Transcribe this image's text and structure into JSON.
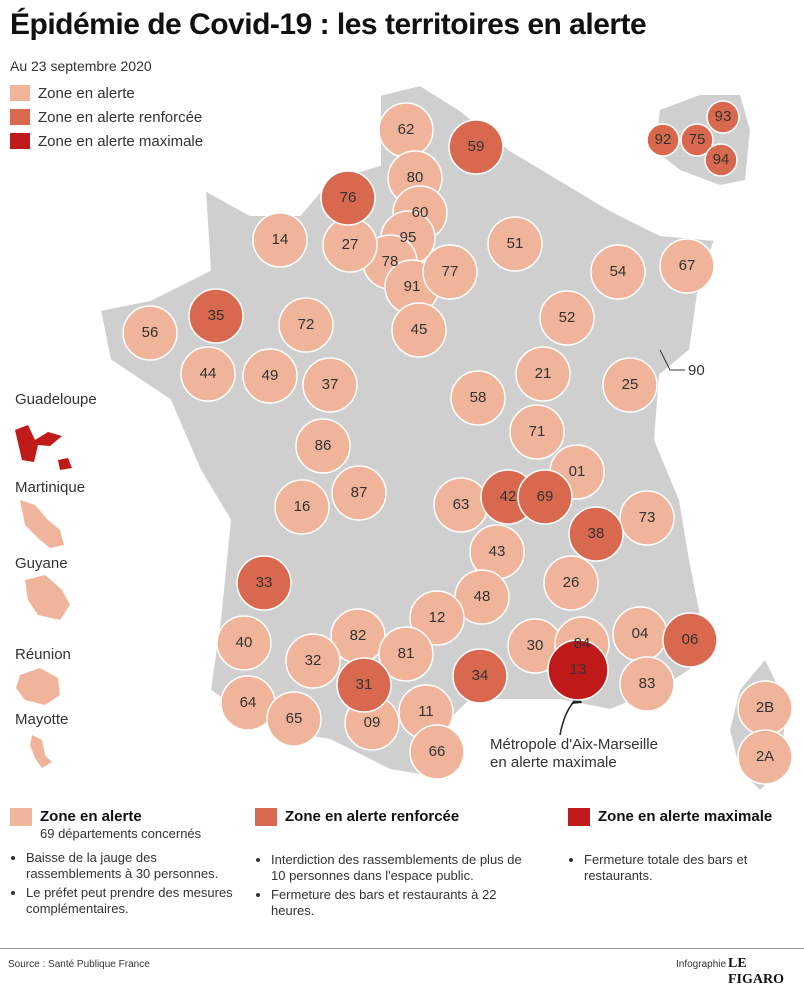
{
  "title": "Épidémie de Covid-19 : les territoires en alerte",
  "date": "Au 23 septembre 2020",
  "zones": [
    {
      "label": "Zone en alerte",
      "color": "#f0b49a",
      "note": "69 départements concernés",
      "departments": [
        "62",
        "80",
        "60",
        "95",
        "78",
        "91",
        "77",
        "14",
        "27",
        "51",
        "54",
        "67",
        "56",
        "72",
        "45",
        "52",
        "44",
        "49",
        "37",
        "58",
        "21",
        "25",
        "86",
        "71",
        "01",
        "16",
        "87",
        "63",
        "73",
        "43",
        "26",
        "48",
        "12",
        "30",
        "84",
        "04",
        "40",
        "82",
        "81",
        "32",
        "83",
        "64",
        "65",
        "09",
        "11",
        "66",
        "2B",
        "2A"
      ],
      "bullets": [
        "Baisse de la jauge des rassemblements à 30 personnes.",
        "Le préfet peut prendre des mesures complémentaires."
      ]
    },
    {
      "label": "Zone en alerte renforcée",
      "color": "#d9694e",
      "departments": [
        "59",
        "76",
        "35",
        "42",
        "69",
        "38",
        "33",
        "06",
        "34",
        "31",
        "92",
        "75",
        "93",
        "94"
      ],
      "bullets": [
        "Interdiction des rassemblements de plus de 10 personnes dans l'espace public.",
        "Fermeture des bars et restaurants à 22 heures."
      ]
    },
    {
      "label": "Zone en alerte maximale",
      "color": "#c0191a",
      "departments": [
        "13"
      ],
      "bullets": [
        "Fermeture totale des bars et restaurants."
      ]
    }
  ],
  "overseas": [
    {
      "name": "Guadeloupe",
      "color": "#c0191a"
    },
    {
      "name": "Martinique",
      "color": "#f0b49a"
    },
    {
      "name": "Guyane",
      "color": "#f0b49a"
    },
    {
      "name": "Réunion",
      "color": "#f0b49a"
    },
    {
      "name": "Mayotte",
      "color": "#f0b49a"
    }
  ],
  "annotations": {
    "territoire": "90",
    "metropole": [
      "Métropole d'Aix-Marseille",
      "en alerte maximale"
    ]
  },
  "source": "Source  : Santé Publique France",
  "credit": {
    "prefix": "Infographie",
    "brand": "LE FIGARO"
  }
}
